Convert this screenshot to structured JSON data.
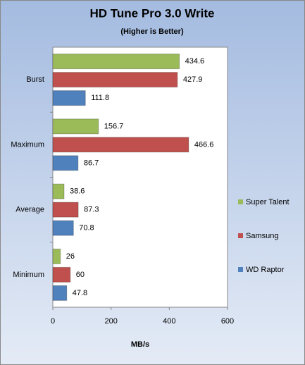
{
  "chart_data": {
    "type": "hbar",
    "title": "HD Tune Pro 3.0 Write",
    "subtitle": "(Higher is Better)",
    "x_label": "MB/s",
    "categories": [
      "Burst",
      "Maximum",
      "Average",
      "Minimum"
    ],
    "series": [
      {
        "name": "Super Talent",
        "color": "#9bbb59",
        "values": [
          434.6,
          156.7,
          38.6,
          26
        ]
      },
      {
        "name": "Samsung",
        "color": "#c0504d",
        "values": [
          427.9,
          466.6,
          87.3,
          60
        ]
      },
      {
        "name": "WD Raptor",
        "color": "#4f81bd",
        "values": [
          111.8,
          86.7,
          70.8,
          47.8
        ]
      }
    ],
    "xlim": [
      0,
      600
    ],
    "xticks": [
      0,
      200,
      400,
      600
    ],
    "legend": "right"
  }
}
